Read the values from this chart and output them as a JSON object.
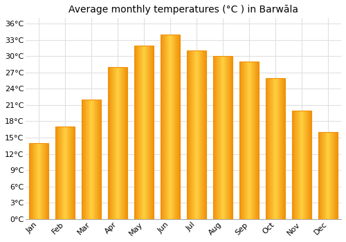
{
  "title": "Average monthly temperatures (°C ) in Barwāla",
  "months": [
    "Jan",
    "Feb",
    "Mar",
    "Apr",
    "May",
    "Jun",
    "Jul",
    "Aug",
    "Sep",
    "Oct",
    "Nov",
    "Dec"
  ],
  "temperatures": [
    14,
    17,
    22,
    28,
    32,
    34,
    31,
    30,
    29,
    26,
    20,
    16
  ],
  "bar_color_center": "#FFD040",
  "bar_color_edge": "#F0900A",
  "ylim": [
    0,
    37
  ],
  "yticks": [
    0,
    3,
    6,
    9,
    12,
    15,
    18,
    21,
    24,
    27,
    30,
    33,
    36
  ],
  "ytick_labels": [
    "0°C",
    "3°C",
    "6°C",
    "9°C",
    "12°C",
    "15°C",
    "18°C",
    "21°C",
    "24°C",
    "27°C",
    "30°C",
    "33°C",
    "36°C"
  ],
  "background_color": "#ffffff",
  "grid_color": "#e0e0e0",
  "title_fontsize": 10,
  "tick_fontsize": 8,
  "bar_width": 0.75
}
